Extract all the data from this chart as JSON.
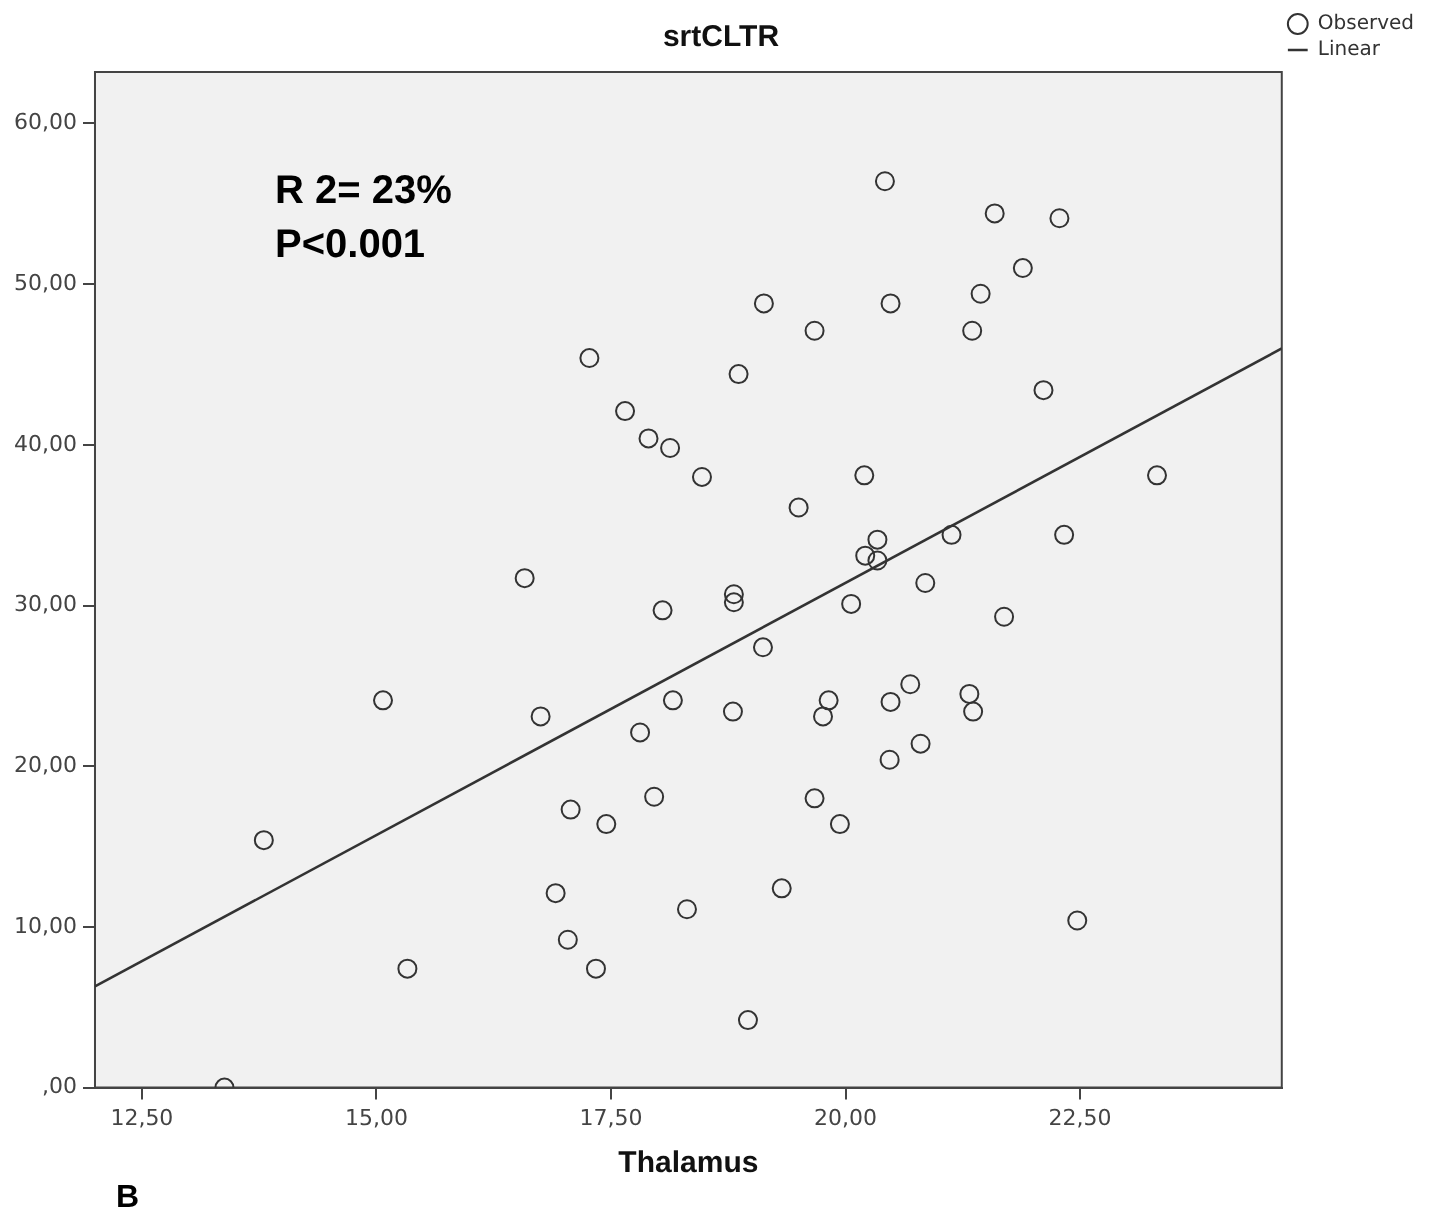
{
  "chart_data": {
    "type": "scatter",
    "title": "srtCLTR",
    "xlabel": "Thalamus",
    "annotations": [
      "R 2= 23%",
      "P<0.001",
      "B"
    ],
    "xlim": [
      12,
      24.65
    ],
    "ylim": [
      0,
      63.2
    ],
    "xticks": [
      {
        "value": 12.5,
        "label": "12,50"
      },
      {
        "value": 15,
        "label": "15,00"
      },
      {
        "value": 17.5,
        "label": "17,50"
      },
      {
        "value": 20,
        "label": "20,00"
      },
      {
        "value": 22.5,
        "label": "22,50"
      }
    ],
    "yticks": [
      {
        "value": 0,
        "label": ",00"
      },
      {
        "value": 10,
        "label": "10,00"
      },
      {
        "value": 20,
        "label": "20,00"
      },
      {
        "value": 30,
        "label": "30,00"
      },
      {
        "value": 40,
        "label": "40,00"
      },
      {
        "value": 50,
        "label": "50,00"
      },
      {
        "value": 60,
        "label": "60,00"
      }
    ],
    "grid": false,
    "legend": "top right",
    "marker": "circle",
    "series": [
      {
        "name": "Observed",
        "color": "#333333",
        "x": [
          20.42,
          21.59,
          22.28,
          21.89,
          21.44,
          19.13,
          20.48,
          19.67,
          21.35,
          17.27,
          18.86,
          22.11,
          17.65,
          17.9,
          18.13,
          18.47,
          20.2,
          23.32,
          19.5,
          20.34,
          21.13,
          22.33,
          20.21,
          20.34,
          16.58,
          20.85,
          18.81,
          18.81,
          18.05,
          20.06,
          21.69,
          19.12,
          20.69,
          21.32,
          15.07,
          18.16,
          19.82,
          20.48,
          16.75,
          18.8,
          19.76,
          21.36,
          17.81,
          20.8,
          20.47,
          17.96,
          19.67,
          17.07,
          17.45,
          19.94,
          13.8,
          19.32,
          16.91,
          18.31,
          22.47,
          17.04,
          15.33,
          17.34,
          18.96,
          13.38
        ],
        "values": [
          56.4,
          54.4,
          54.1,
          51,
          49.4,
          48.8,
          48.8,
          47.1,
          47.1,
          45.4,
          44.4,
          43.4,
          42.1,
          40.4,
          39.8,
          38,
          38.1,
          38.1,
          36.1,
          34.1,
          34.4,
          34.4,
          33.1,
          32.8,
          31.7,
          31.4,
          30.7,
          30.2,
          29.7,
          30.1,
          29.3,
          27.4,
          25.1,
          24.5,
          24.1,
          24.1,
          24.1,
          24,
          23.1,
          23.4,
          23.1,
          23.4,
          22.1,
          21.4,
          20.4,
          18.1,
          18,
          17.3,
          16.4,
          16.4,
          15.4,
          12.4,
          12.1,
          11.1,
          10.4,
          9.2,
          7.4,
          7.4,
          4.2,
          0
        ]
      },
      {
        "name": "Linear",
        "type": "line",
        "color": "#333333",
        "x": [
          12,
          24.65
        ],
        "values": [
          6.3,
          46
        ],
        "marker": "none",
        "line_style": "solid"
      }
    ]
  }
}
